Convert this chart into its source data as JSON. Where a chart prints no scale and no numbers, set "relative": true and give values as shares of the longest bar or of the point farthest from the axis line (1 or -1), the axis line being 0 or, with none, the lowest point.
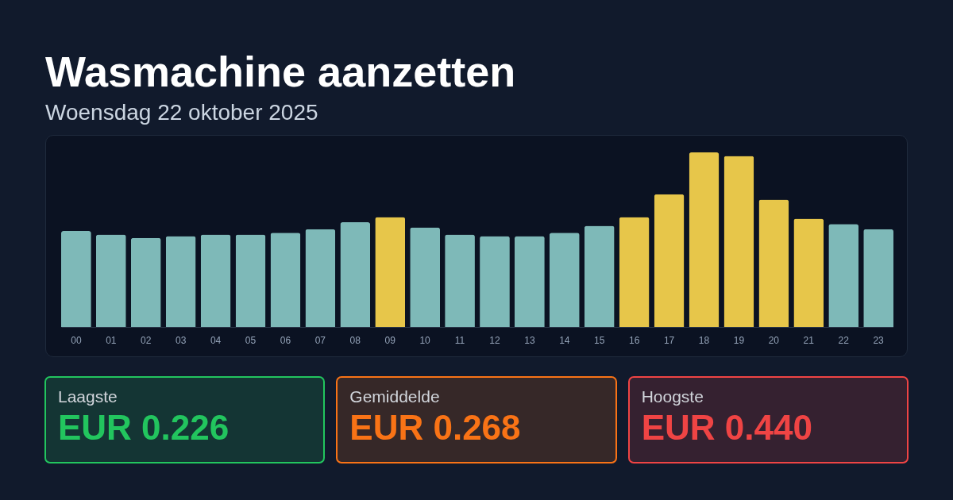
{
  "chart_data": [
    {
      "type": "bar",
      "title": "Wasmachine aanzetten",
      "subtitle": "Woensdag 22 oktober 2025",
      "relative": true,
      "categories": [
        "00",
        "01",
        "02",
        "03",
        "04",
        "05",
        "06",
        "07",
        "08",
        "09",
        "10",
        "11",
        "12",
        "13",
        "14",
        "15",
        "16",
        "17",
        "18",
        "19",
        "20",
        "21",
        "22",
        "23"
      ],
      "values": [
        0.55,
        0.53,
        0.51,
        0.52,
        0.53,
        0.53,
        0.54,
        0.56,
        0.6,
        0.63,
        0.57,
        0.53,
        0.52,
        0.52,
        0.54,
        0.58,
        0.63,
        0.76,
        1,
        0.98,
        0.73,
        0.62,
        0.59,
        0.56
      ],
      "colors": [
        "#7eb9b8",
        "#7eb9b8",
        "#7eb9b8",
        "#7eb9b8",
        "#7eb9b8",
        "#7eb9b8",
        "#7eb9b8",
        "#7eb9b8",
        "#7eb9b8",
        "#e7c64a",
        "#7eb9b8",
        "#7eb9b8",
        "#7eb9b8",
        "#7eb9b8",
        "#7eb9b8",
        "#7eb9b8",
        "#e7c64a",
        "#e7c64a",
        "#e7c64a",
        "#e7c64a",
        "#e7c64a",
        "#e7c64a",
        "#7eb9b8",
        "#7eb9b8"
      ]
    },
    {
      "type": "other",
      "title": "Laagste",
      "annotations": [
        "EUR 0.226"
      ],
      "color": "#22c55e"
    },
    {
      "type": "other",
      "title": "Gemiddelde",
      "annotations": [
        "EUR 0.268"
      ],
      "color": "#f97316"
    },
    {
      "type": "other",
      "title": "Hoogste",
      "annotations": [
        "EUR 0.440"
      ],
      "color": "#ef4444"
    }
  ]
}
